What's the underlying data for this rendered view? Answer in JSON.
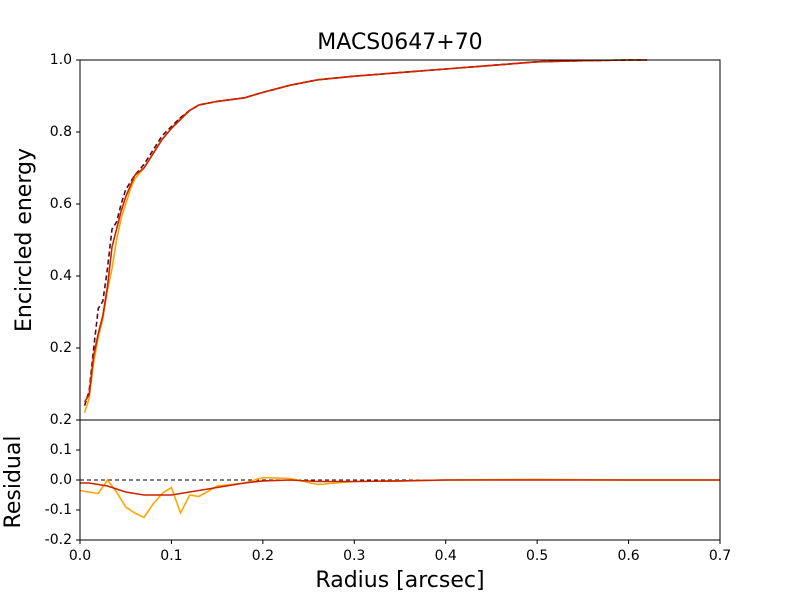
{
  "chart_data": [
    {
      "type": "line",
      "title": "MACS0647+70",
      "y_label": "Encircled energy",
      "xlim": [
        0,
        0.7
      ],
      "ylim": [
        0,
        1
      ],
      "yticks": [
        0.2,
        0.4,
        0.6,
        0.8,
        {
          "value": 1,
          "label": "1.0"
        }
      ],
      "x": [
        0.005,
        0.01,
        0.015,
        0.02,
        0.025,
        0.03,
        0.035,
        0.04,
        0.045,
        0.05,
        0.055,
        0.06,
        0.07,
        0.08,
        0.09,
        0.1,
        0.11,
        0.12,
        0.13,
        0.15,
        0.18,
        0.2,
        0.23,
        0.26,
        0.3,
        0.35,
        0.4,
        0.45,
        0.5,
        0.55,
        0.6,
        0.62
      ],
      "series": [
        {
          "color": "#ffa500",
          "style": "solid",
          "values": [
            0.02,
            0.06,
            0.16,
            0.23,
            0.28,
            0.36,
            0.42,
            0.5,
            0.56,
            0.6,
            0.64,
            0.67,
            0.7,
            0.74,
            0.78,
            0.81,
            0.84,
            0.86,
            0.875,
            0.885,
            0.895,
            0.91,
            0.93,
            0.945,
            0.955,
            0.965,
            0.975,
            0.985,
            0.995,
            0.998,
            1.0,
            1.0
          ]
        },
        {
          "color": "#5a0a1e",
          "style": "dashed",
          "values": [
            0.04,
            0.08,
            0.2,
            0.31,
            0.33,
            0.42,
            0.53,
            0.55,
            0.6,
            0.64,
            0.66,
            0.68,
            0.71,
            0.75,
            0.79,
            0.815,
            0.84,
            0.86,
            0.875,
            0.885,
            0.895,
            0.91,
            0.93,
            0.945,
            0.955,
            0.965,
            0.975,
            0.985,
            0.995,
            0.998,
            1.0,
            1.0
          ]
        },
        {
          "color": "#cc2200",
          "style": "solid",
          "values": [
            0.05,
            0.07,
            0.18,
            0.24,
            0.29,
            0.37,
            0.48,
            0.53,
            0.58,
            0.62,
            0.65,
            0.68,
            0.7,
            0.74,
            0.78,
            0.81,
            0.835,
            0.86,
            0.875,
            0.885,
            0.895,
            0.91,
            0.93,
            0.945,
            0.955,
            0.965,
            0.975,
            0.985,
            0.995,
            0.998,
            1.0,
            1.0
          ]
        }
      ]
    },
    {
      "type": "line",
      "x_label": "Radius [arcsec]",
      "y_label": "Residual",
      "xlim": [
        0,
        0.7
      ],
      "ylim": [
        -0.2,
        0.2
      ],
      "xticks": [
        {
          "value": 0,
          "label": "0.0"
        },
        0.1,
        0.2,
        0.3,
        0.4,
        0.5,
        0.6,
        0.7
      ],
      "yticks": [
        -0.2,
        -0.1,
        {
          "value": 0,
          "label": "0.0"
        },
        0.1,
        0.2
      ],
      "reference_line": 0,
      "x": [
        0,
        0.01,
        0.02,
        0.03,
        0.04,
        0.05,
        0.06,
        0.07,
        0.08,
        0.09,
        0.1,
        0.11,
        0.12,
        0.13,
        0.15,
        0.18,
        0.2,
        0.23,
        0.26,
        0.3,
        0.35,
        0.4,
        0.5,
        0.6,
        0.7
      ],
      "series": [
        {
          "color": "#ffa500",
          "style": "solid",
          "values": [
            -0.035,
            -0.04,
            -0.045,
            0.0,
            -0.04,
            -0.09,
            -0.11,
            -0.125,
            -0.08,
            -0.045,
            -0.025,
            -0.11,
            -0.05,
            -0.055,
            -0.02,
            -0.01,
            0.008,
            0.005,
            -0.015,
            -0.005,
            -0.003,
            0.0,
            0.002,
            0.0,
            0.0
          ]
        },
        {
          "color": "#cc2200",
          "style": "solid",
          "values": [
            -0.01,
            -0.01,
            -0.015,
            -0.02,
            -0.03,
            -0.04,
            -0.045,
            -0.05,
            -0.05,
            -0.05,
            -0.05,
            -0.045,
            -0.04,
            -0.035,
            -0.025,
            -0.01,
            -0.003,
            0.0,
            -0.005,
            -0.005,
            -0.003,
            0.0,
            0.0,
            0.0,
            0.0
          ]
        }
      ]
    }
  ]
}
